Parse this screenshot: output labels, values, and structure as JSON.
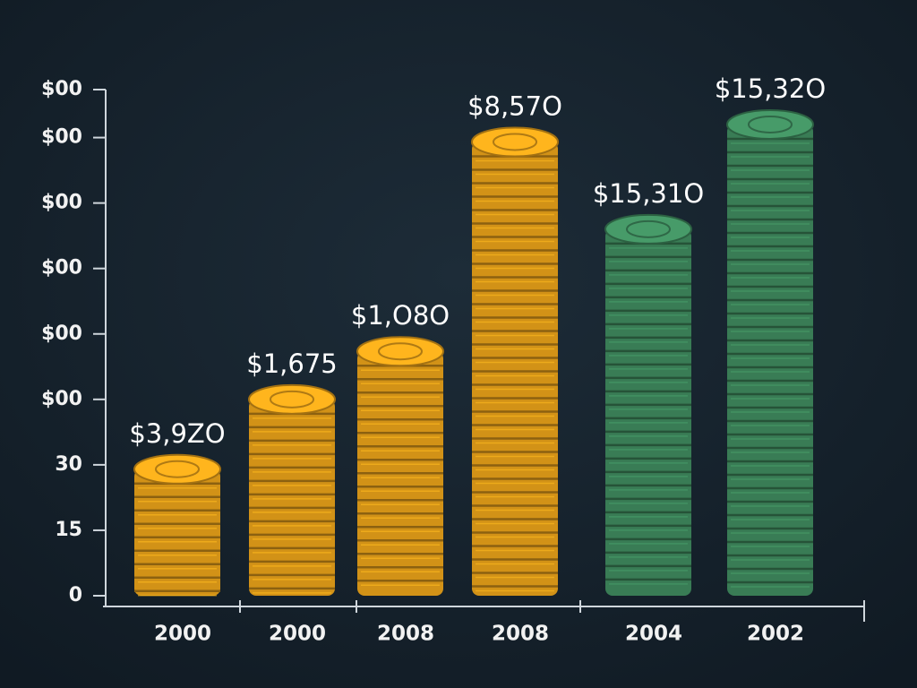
{
  "chart_data": {
    "type": "bar",
    "categories": [
      "2000",
      "2000",
      "2008",
      "2008",
      "2004",
      "2002"
    ],
    "values": [
      29,
      45,
      56,
      104,
      84,
      108
    ],
    "annotations": [
      "$3,9ZO",
      "$1,675",
      "$1,O8O",
      "$8,57O",
      "$15,31O",
      "$15,32O"
    ],
    "colors": [
      "#e9a21a",
      "#e9a21a",
      "#e9a21a",
      "#e9a21a",
      "#3f8a5e",
      "#3f8a5e"
    ],
    "ylim": [
      0,
      116
    ],
    "yticks": [
      0,
      15,
      30,
      {
        "value": 45,
        "label": "$00"
      },
      {
        "value": 60,
        "label": "$00"
      },
      {
        "value": 75,
        "label": "$00"
      },
      {
        "value": 90,
        "label": "$00"
      },
      {
        "value": 105,
        "label": "$00"
      },
      {
        "value": 116,
        "label": "$00"
      }
    ]
  }
}
